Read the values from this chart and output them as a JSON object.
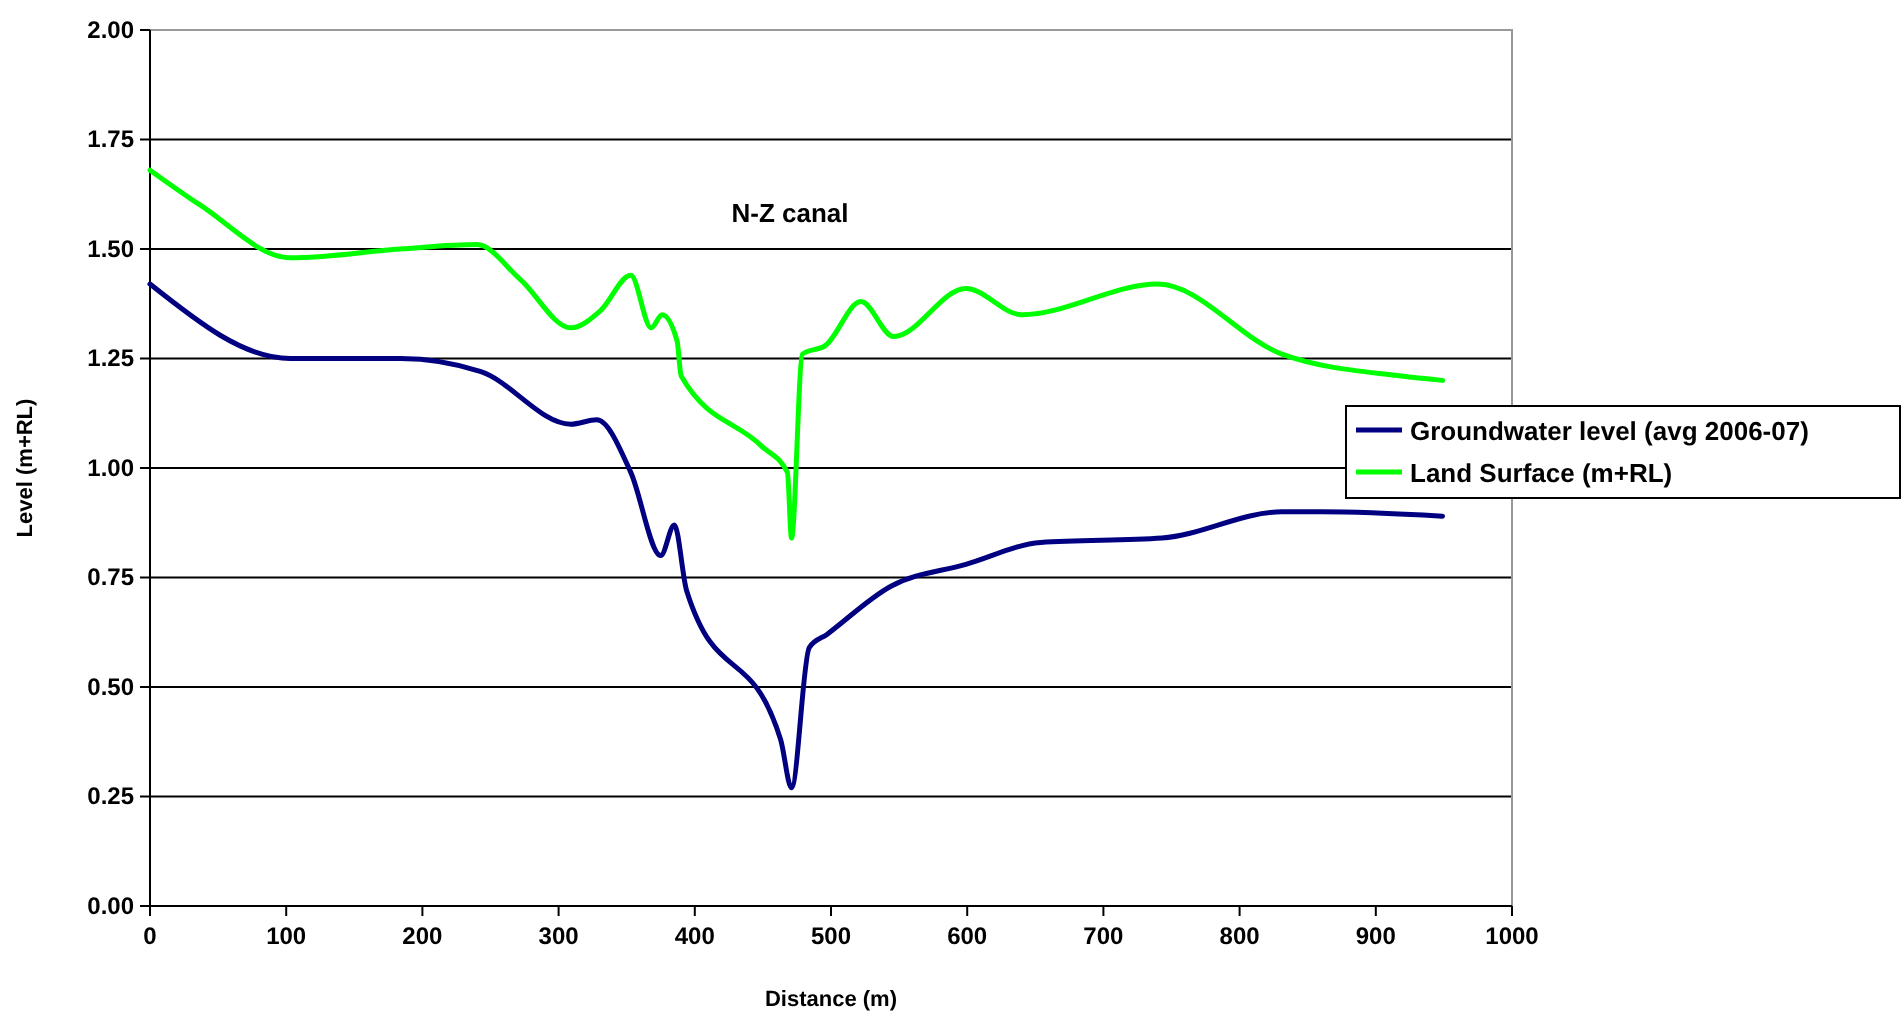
{
  "chart_data": {
    "type": "line",
    "xlabel": "Distance (m)",
    "ylabel": "Level (m+RL)",
    "annotations": [
      "N-Z canal"
    ],
    "xlim": [
      0,
      1000
    ],
    "xticks": [
      0,
      100,
      200,
      300,
      400,
      500,
      600,
      700,
      800,
      900,
      1000
    ],
    "ylim": [
      0,
      2
    ],
    "yticks": [
      {
        "value": 0,
        "label": "0.00"
      },
      {
        "value": 0.25,
        "label": "0.25"
      },
      {
        "value": 0.5,
        "label": "0.50"
      },
      {
        "value": 0.75,
        "label": "0.75"
      },
      {
        "value": 1,
        "label": "1.00"
      },
      {
        "value": 1.25,
        "label": "1.25"
      },
      {
        "value": 1.5,
        "label": "1.50"
      },
      {
        "value": 1.75,
        "label": "1.75"
      },
      {
        "value": 2,
        "label": "2.00"
      }
    ],
    "grid": "y",
    "legend": "right",
    "marker": "none",
    "line_style": "solid",
    "series": [
      {
        "name": "Groundwater level (avg 2006-07)",
        "color": "#000080",
        "x": [
          0,
          103,
          184,
          243,
          309,
          328,
          353,
          375,
          385,
          394,
          463,
          471,
          484,
          497,
          544,
          599,
          654,
          743,
          831,
          860,
          949
        ],
        "values": [
          1.42,
          1.25,
          1.25,
          1.22,
          1.1,
          1.11,
          0.99,
          0.8,
          0.87,
          0.72,
          0.38,
          0.27,
          0.59,
          0.62,
          0.73,
          0.78,
          0.83,
          0.84,
          0.9,
          0.9,
          0.89
        ]
      },
      {
        "name": "Land Surface (m+RL)",
        "color": "#00ff00",
        "x": [
          0,
          37,
          103,
          184,
          240,
          272,
          309,
          331,
          353,
          368,
          376,
          387,
          390,
          449,
          468,
          471,
          479,
          496,
          522,
          546,
          599,
          640,
          740,
          831,
          919,
          949
        ],
        "values": [
          1.68,
          1.6,
          1.48,
          1.5,
          1.51,
          1.43,
          1.32,
          1.36,
          1.44,
          1.32,
          1.35,
          1.29,
          1.21,
          1.05,
          0.99,
          0.84,
          1.26,
          1.28,
          1.38,
          1.3,
          1.41,
          1.35,
          1.42,
          1.26,
          1.21,
          1.2
        ]
      }
    ]
  }
}
